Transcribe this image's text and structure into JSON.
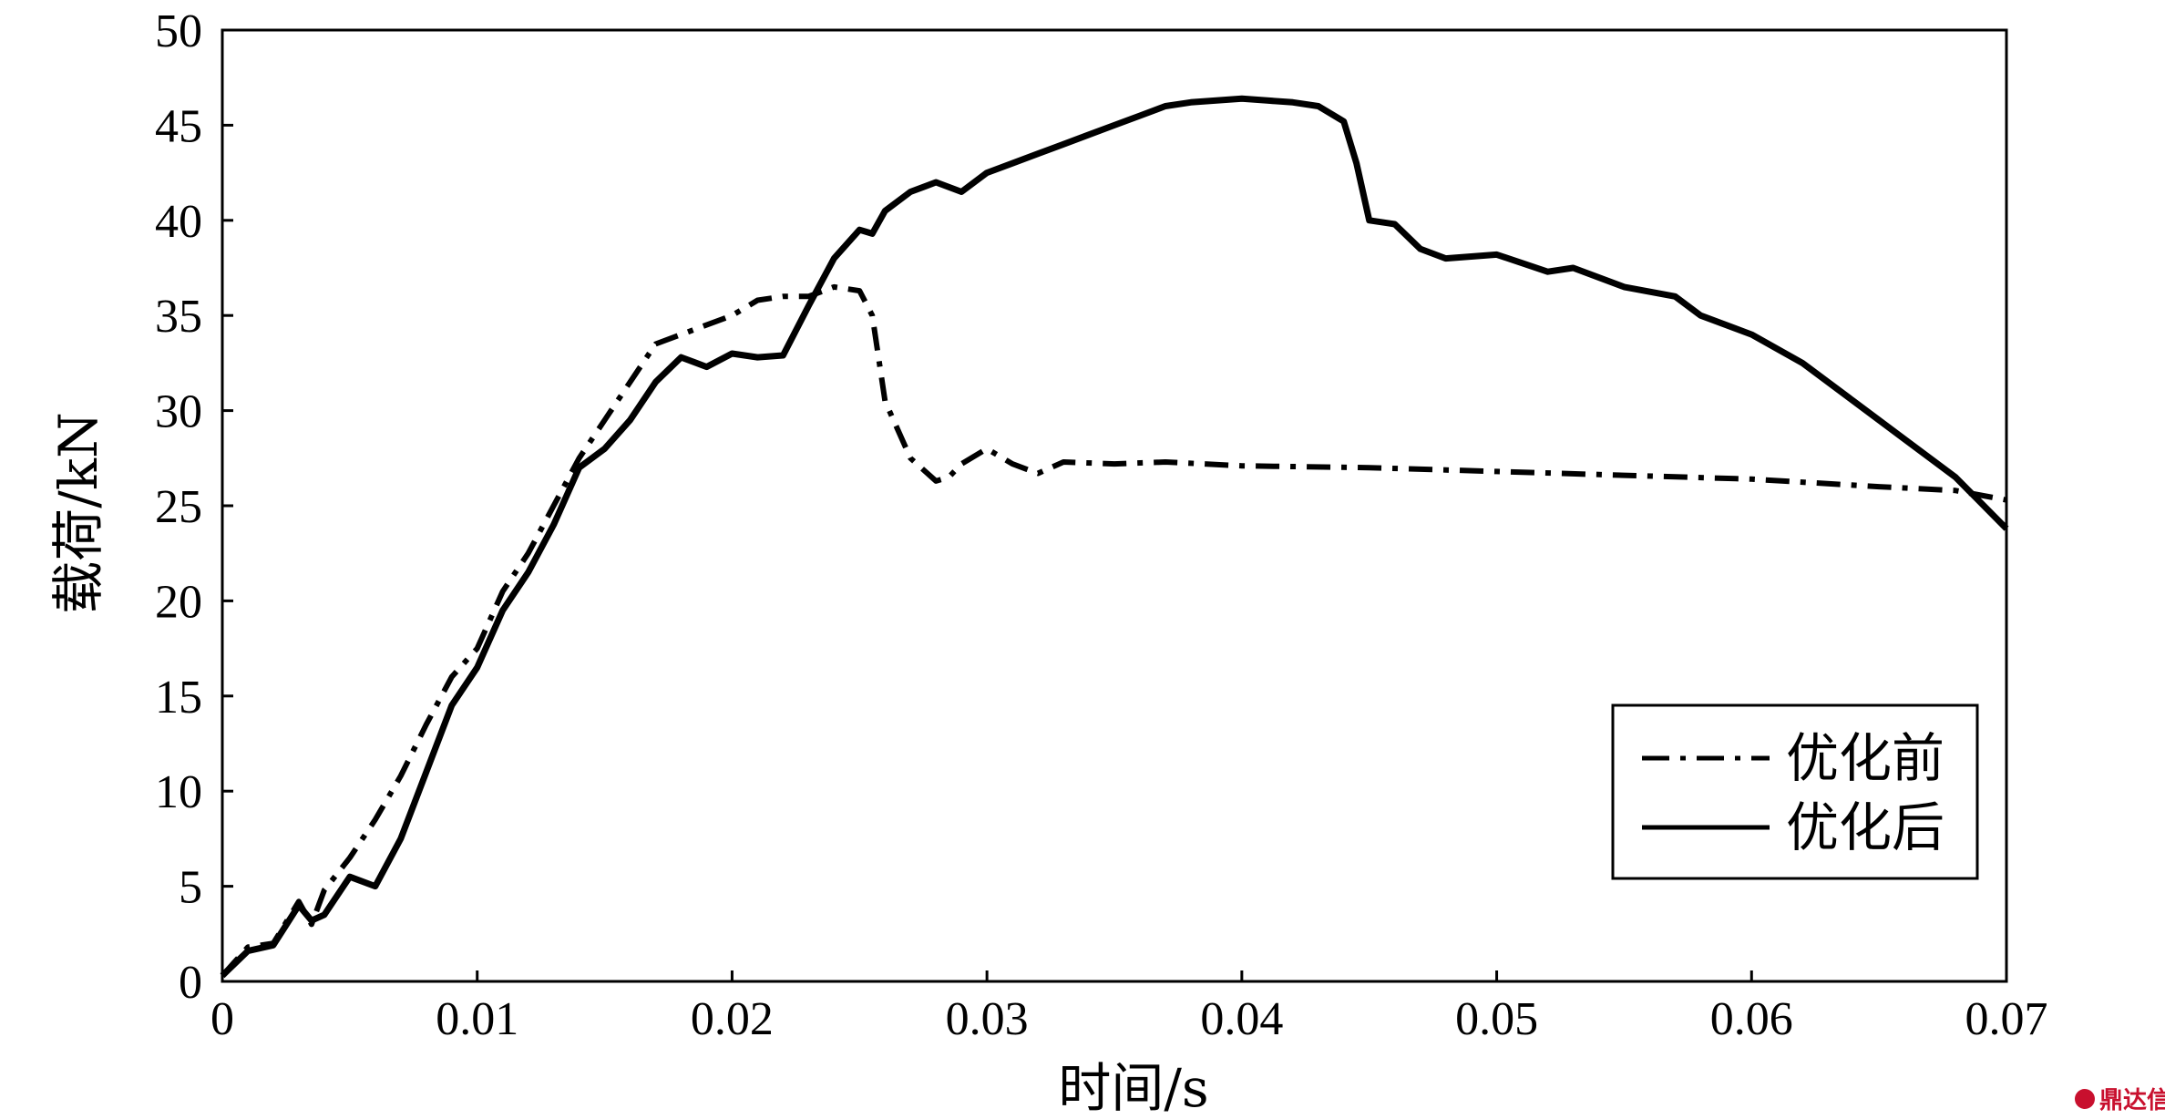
{
  "chart_data": {
    "type": "line",
    "xlabel": "时间/s",
    "ylabel": "载荷/kN",
    "xlim": [
      0,
      0.07
    ],
    "ylim": [
      0,
      50
    ],
    "xticks": [
      0,
      0.01,
      0.02,
      0.03,
      0.04,
      0.05,
      0.06,
      0.07
    ],
    "xtick_labels": [
      "0",
      "0.01",
      "0.02",
      "0.03",
      "0.04",
      "0.05",
      "0.06",
      "0.07"
    ],
    "yticks": [
      0,
      5,
      10,
      15,
      20,
      25,
      30,
      35,
      40,
      45,
      50
    ],
    "ytick_labels": [
      "0",
      "5",
      "10",
      "15",
      "20",
      "25",
      "30",
      "35",
      "40",
      "45",
      "50"
    ],
    "grid": false,
    "legend_position": "bottom-right",
    "series": [
      {
        "name": "优化前",
        "style": "dash-dot",
        "x": [
          0,
          0.001,
          0.002,
          0.003,
          0.0035,
          0.004,
          0.005,
          0.006,
          0.007,
          0.008,
          0.009,
          0.01,
          0.011,
          0.012,
          0.013,
          0.014,
          0.015,
          0.016,
          0.017,
          0.018,
          0.019,
          0.02,
          0.021,
          0.022,
          0.023,
          0.024,
          0.025,
          0.0255,
          0.026,
          0.027,
          0.028,
          0.0285,
          0.029,
          0.03,
          0.031,
          0.032,
          0.033,
          0.035,
          0.037,
          0.04,
          0.045,
          0.05,
          0.055,
          0.06,
          0.065,
          0.068,
          0.07
        ],
        "values": [
          0.3,
          1.8,
          2.0,
          4.2,
          3.0,
          4.8,
          6.5,
          8.5,
          10.8,
          13.5,
          16.0,
          17.5,
          20.5,
          22.5,
          25.0,
          27.5,
          29.5,
          31.5,
          33.5,
          34.0,
          34.5,
          35.0,
          35.8,
          36.0,
          36.0,
          36.5,
          36.3,
          35.0,
          30.5,
          27.5,
          26.3,
          26.5,
          27.2,
          28.0,
          27.2,
          26.7,
          27.3,
          27.2,
          27.3,
          27.1,
          27.0,
          26.8,
          26.6,
          26.4,
          26.0,
          25.8,
          25.3
        ]
      },
      {
        "name": "优化后",
        "style": "solid",
        "x": [
          0,
          0.001,
          0.002,
          0.003,
          0.0035,
          0.004,
          0.005,
          0.006,
          0.007,
          0.008,
          0.009,
          0.01,
          0.011,
          0.012,
          0.013,
          0.014,
          0.015,
          0.016,
          0.017,
          0.018,
          0.019,
          0.02,
          0.021,
          0.022,
          0.023,
          0.024,
          0.025,
          0.0255,
          0.026,
          0.027,
          0.028,
          0.029,
          0.03,
          0.031,
          0.032,
          0.033,
          0.034,
          0.035,
          0.036,
          0.037,
          0.038,
          0.039,
          0.04,
          0.041,
          0.042,
          0.043,
          0.044,
          0.0445,
          0.045,
          0.046,
          0.047,
          0.048,
          0.05,
          0.052,
          0.053,
          0.055,
          0.057,
          0.058,
          0.06,
          0.062,
          0.064,
          0.066,
          0.068,
          0.07
        ],
        "values": [
          0.3,
          1.6,
          1.9,
          4.0,
          3.2,
          3.5,
          5.5,
          5.0,
          7.5,
          11.0,
          14.5,
          16.5,
          19.5,
          21.5,
          24.0,
          27.0,
          28.0,
          29.5,
          31.5,
          32.8,
          32.3,
          33.0,
          32.8,
          32.9,
          35.5,
          38.0,
          39.5,
          39.3,
          40.5,
          41.5,
          42.0,
          41.5,
          42.5,
          43.0,
          43.5,
          44.0,
          44.5,
          45.0,
          45.5,
          46.0,
          46.2,
          46.3,
          46.4,
          46.3,
          46.2,
          46.0,
          45.2,
          43.0,
          40.0,
          39.8,
          38.5,
          38.0,
          38.2,
          37.3,
          37.5,
          36.5,
          36.0,
          35.0,
          34.0,
          32.5,
          30.5,
          28.5,
          26.5,
          23.8
        ]
      }
    ]
  },
  "watermark": {
    "text": "鼎达信",
    "icon": "cqvip-logo-icon"
  }
}
